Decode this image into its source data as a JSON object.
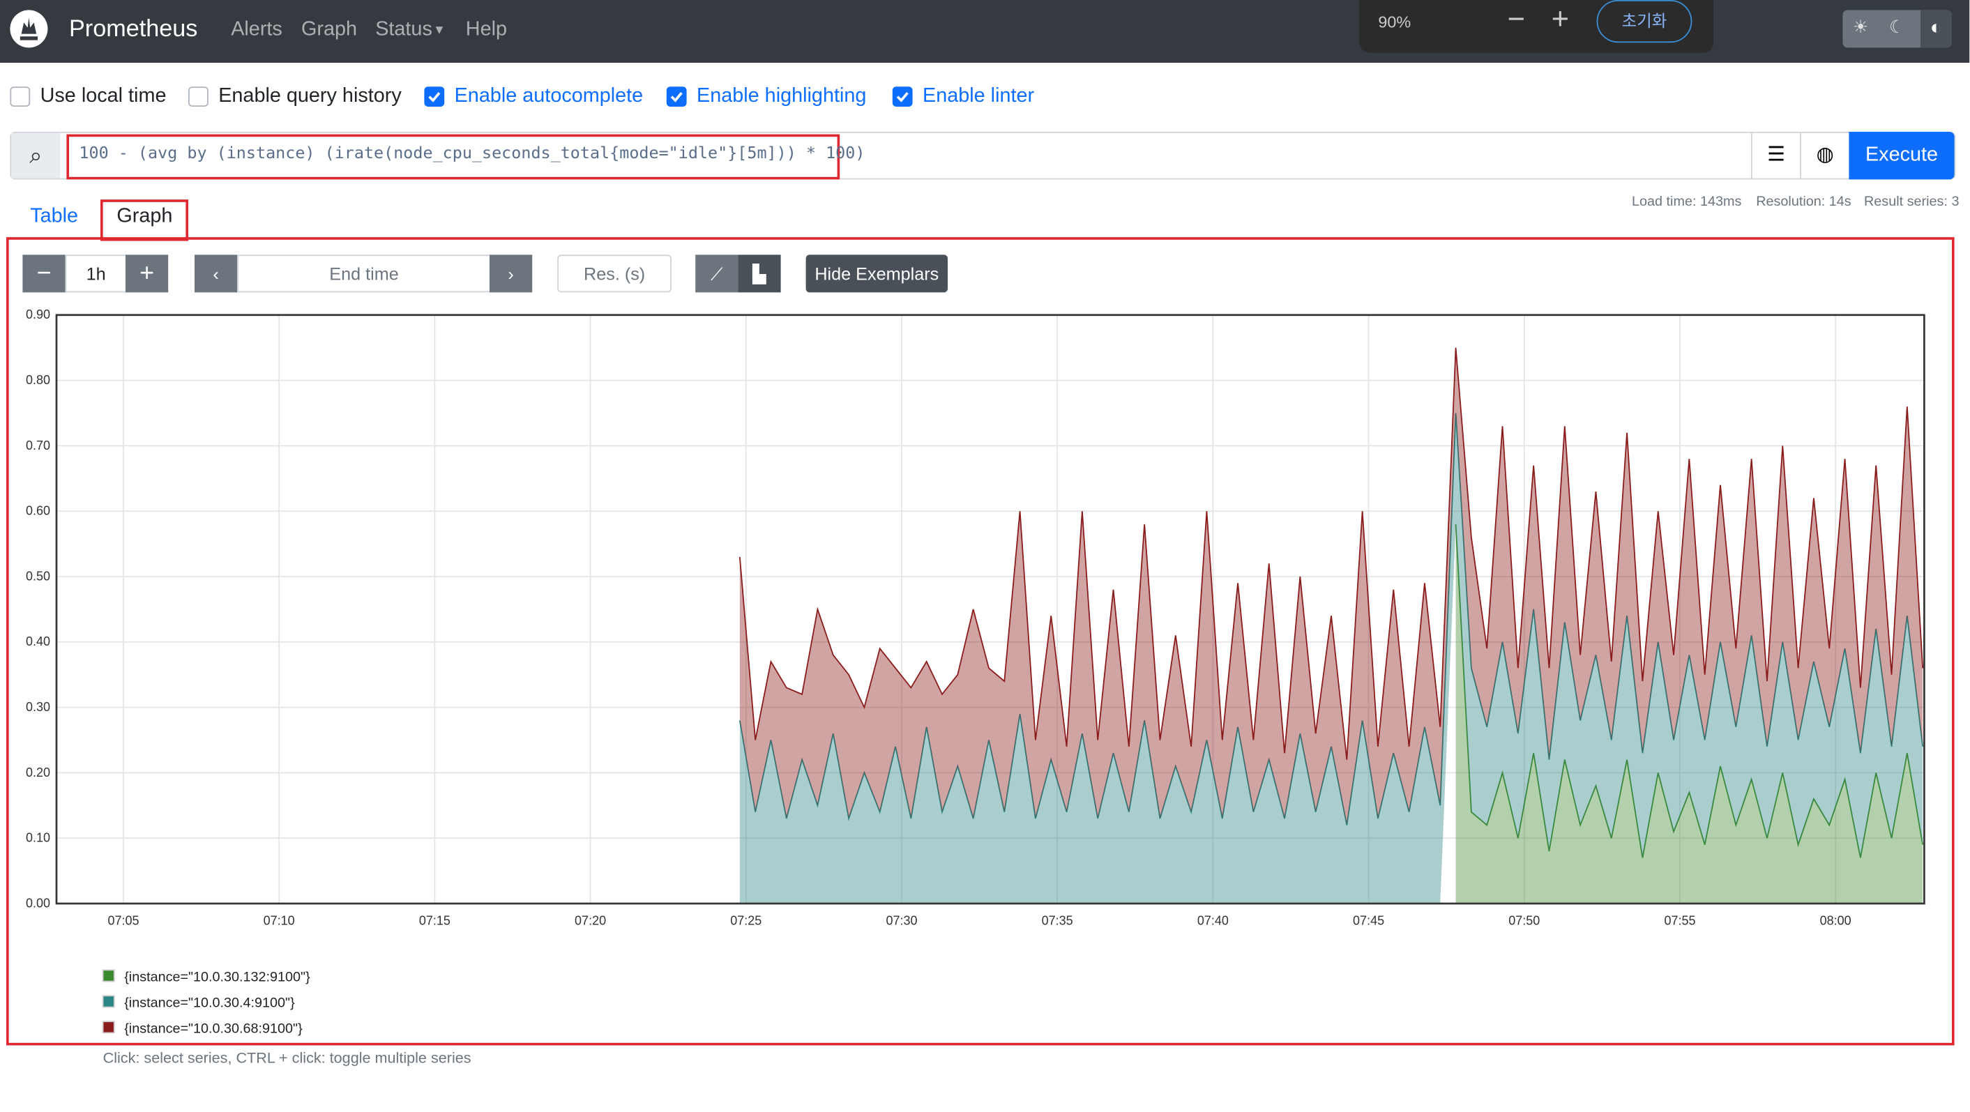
{
  "navbar": {
    "brand": "Prometheus",
    "links": [
      "Alerts",
      "Graph",
      "Status",
      "Help"
    ]
  },
  "zoom_bar": {
    "level": "90%",
    "reset": "초기화"
  },
  "options": [
    "Use local time",
    "Enable query history",
    "Enable autocomplete",
    "Enable highlighting",
    "Enable linter"
  ],
  "options_checked": [
    false,
    false,
    true,
    true,
    true
  ],
  "query": "100 - (avg by (instance) (irate(node_cpu_seconds_total{mode=\"idle\"}[5m])) * 100)",
  "execute": "Execute",
  "stats": [
    "Load time: 143ms",
    "Resolution: 14s",
    "Result series: 3"
  ],
  "tabs": [
    "Table",
    "Graph"
  ],
  "controls": {
    "range": "1h",
    "end_time": "End time",
    "resolution": "Res. (s)",
    "exemplars": "Hide Exemplars"
  },
  "hint": "Click: select series, CTRL + click: toggle multiple series",
  "chart_data": {
    "type": "area",
    "stacked": true,
    "grid": true,
    "x": [
      24.8,
      25.3,
      25.8,
      26.3,
      26.8,
      27.3,
      27.8,
      28.3,
      28.8,
      29.3,
      29.8,
      30.3,
      30.8,
      31.3,
      31.8,
      32.3,
      32.8,
      33.3,
      33.8,
      34.3,
      34.8,
      35.3,
      35.8,
      36.3,
      36.8,
      37.3,
      37.8,
      38.3,
      38.8,
      39.3,
      39.8,
      40.3,
      40.8,
      41.3,
      41.8,
      42.3,
      42.8,
      43.3,
      43.8,
      44.3,
      44.8,
      45.3,
      45.8,
      46.3,
      46.8,
      47.3,
      47.8,
      48.3,
      48.8,
      49.3,
      49.8,
      50.3,
      50.8,
      51.3,
      51.8,
      52.3,
      52.8,
      53.3,
      53.8,
      54.3,
      54.8,
      55.3,
      55.8,
      56.3,
      56.8,
      57.3,
      57.8,
      58.3,
      58.8,
      59.3,
      59.8,
      60.3,
      60.8,
      61.3,
      61.8,
      62.3,
      62.8
    ],
    "xlim": [
      2.85,
      62.85
    ],
    "xticks": [
      {
        "value": 5,
        "label": "07:05"
      },
      {
        "value": 10,
        "label": "07:10"
      },
      {
        "value": 15,
        "label": "07:15"
      },
      {
        "value": 20,
        "label": "07:20"
      },
      {
        "value": 25,
        "label": "07:25"
      },
      {
        "value": 30,
        "label": "07:30"
      },
      {
        "value": 35,
        "label": "07:35"
      },
      {
        "value": 40,
        "label": "07:40"
      },
      {
        "value": 45,
        "label": "07:45"
      },
      {
        "value": 50,
        "label": "07:50"
      },
      {
        "value": 55,
        "label": "07:55"
      },
      {
        "value": 60,
        "label": "08:00"
      }
    ],
    "ylim": [
      0,
      0.9
    ],
    "yticks": [
      {
        "value": 0,
        "label": "0.00"
      },
      {
        "value": 0.1,
        "label": "0.10"
      },
      {
        "value": 0.2,
        "label": "0.20"
      },
      {
        "value": 0.3,
        "label": "0.30"
      },
      {
        "value": 0.4,
        "label": "0.40"
      },
      {
        "value": 0.5,
        "label": "0.50"
      },
      {
        "value": 0.6,
        "label": "0.60"
      },
      {
        "value": 0.7,
        "label": "0.70"
      },
      {
        "value": 0.8,
        "label": "0.80"
      },
      {
        "value": 0.9,
        "label": "0.90"
      }
    ],
    "series": [
      {
        "name": "{instance=\"10.0.30.132:9100\"}",
        "color": "#3c8a2e",
        "values": [
          null,
          null,
          null,
          null,
          null,
          null,
          null,
          null,
          null,
          null,
          null,
          null,
          null,
          null,
          null,
          null,
          null,
          null,
          null,
          null,
          null,
          null,
          null,
          null,
          null,
          null,
          null,
          null,
          null,
          null,
          null,
          null,
          null,
          null,
          null,
          null,
          null,
          null,
          null,
          null,
          null,
          null,
          null,
          null,
          null,
          null,
          0.58,
          0.14,
          0.12,
          0.2,
          0.1,
          0.23,
          0.08,
          0.22,
          0.12,
          0.18,
          0.1,
          0.22,
          0.07,
          0.2,
          0.11,
          0.17,
          0.09,
          0.21,
          0.12,
          0.19,
          0.1,
          0.2,
          0.09,
          0.16,
          0.12,
          0.19,
          0.07,
          0.2,
          0.1,
          0.23,
          0.09
        ]
      },
      {
        "name": "{instance=\"10.0.30.4:9100\"}",
        "color": "#2a8585",
        "values": [
          0.28,
          0.14,
          0.25,
          0.13,
          0.22,
          0.15,
          0.26,
          0.13,
          0.2,
          0.14,
          0.24,
          0.13,
          0.27,
          0.14,
          0.21,
          0.13,
          0.25,
          0.14,
          0.29,
          0.13,
          0.22,
          0.14,
          0.26,
          0.13,
          0.23,
          0.14,
          0.28,
          0.13,
          0.21,
          0.14,
          0.25,
          0.13,
          0.27,
          0.14,
          0.22,
          0.13,
          0.26,
          0.14,
          0.24,
          0.12,
          0.28,
          0.13,
          0.23,
          0.14,
          0.27,
          0.15,
          0.17,
          0.22,
          0.15,
          0.2,
          0.16,
          0.22,
          0.14,
          0.21,
          0.16,
          0.2,
          0.15,
          0.22,
          0.16,
          0.2,
          0.14,
          0.21,
          0.16,
          0.19,
          0.15,
          0.22,
          0.14,
          0.2,
          0.16,
          0.21,
          0.15,
          0.2,
          0.16,
          0.22,
          0.14,
          0.21,
          0.15
        ]
      },
      {
        "name": "{instance=\"10.0.30.68:9100\"}",
        "color": "#8b1c1c",
        "values": [
          0.25,
          0.11,
          0.12,
          0.2,
          0.1,
          0.3,
          0.12,
          0.22,
          0.1,
          0.25,
          0.12,
          0.2,
          0.1,
          0.18,
          0.14,
          0.32,
          0.11,
          0.2,
          0.31,
          0.12,
          0.22,
          0.1,
          0.34,
          0.12,
          0.25,
          0.1,
          0.3,
          0.12,
          0.2,
          0.1,
          0.35,
          0.12,
          0.22,
          0.11,
          0.3,
          0.1,
          0.24,
          0.12,
          0.2,
          0.1,
          0.32,
          0.11,
          0.25,
          0.1,
          0.22,
          0.12,
          0.1,
          0.2,
          0.12,
          0.33,
          0.1,
          0.22,
          0.14,
          0.3,
          0.1,
          0.25,
          0.12,
          0.28,
          0.11,
          0.2,
          0.13,
          0.3,
          0.1,
          0.24,
          0.12,
          0.27,
          0.1,
          0.3,
          0.11,
          0.25,
          0.12,
          0.29,
          0.1,
          0.25,
          0.11,
          0.32,
          0.12
        ]
      }
    ]
  }
}
